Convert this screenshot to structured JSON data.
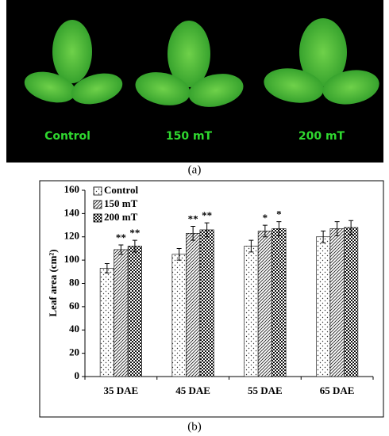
{
  "photo": {
    "labels": [
      "Control",
      "150 mT",
      "200 mT"
    ],
    "caption": "(a)"
  },
  "chart_data": {
    "type": "bar",
    "caption": "(b)",
    "y_label": "Leaf area (cm²)",
    "categories": [
      "35 DAE",
      "45 DAE",
      "55 DAE",
      "65 DAE"
    ],
    "series": [
      {
        "name": "Control",
        "color": "#000000",
        "pattern": "dots",
        "values": [
          93,
          105,
          112,
          120
        ],
        "errors": [
          4,
          5,
          5,
          5
        ],
        "annotations": [
          null,
          null,
          null,
          null
        ]
      },
      {
        "name": "150 mT",
        "color": "#000000",
        "pattern": "hatch",
        "values": [
          109,
          123,
          125,
          127
        ],
        "errors": [
          4,
          6,
          5,
          6
        ],
        "annotations": [
          "**",
          "**",
          "*",
          null
        ]
      },
      {
        "name": "200 mT",
        "color": "#000000",
        "pattern": "checker",
        "values": [
          112,
          126,
          127,
          128
        ],
        "errors": [
          5,
          6,
          6,
          6
        ],
        "annotations": [
          "**",
          "**",
          "*",
          null
        ]
      }
    ],
    "ylim": [
      0,
      160
    ],
    "yticks": [
      0,
      20,
      40,
      60,
      80,
      100,
      120,
      140,
      160
    ],
    "legend": "top-left"
  }
}
